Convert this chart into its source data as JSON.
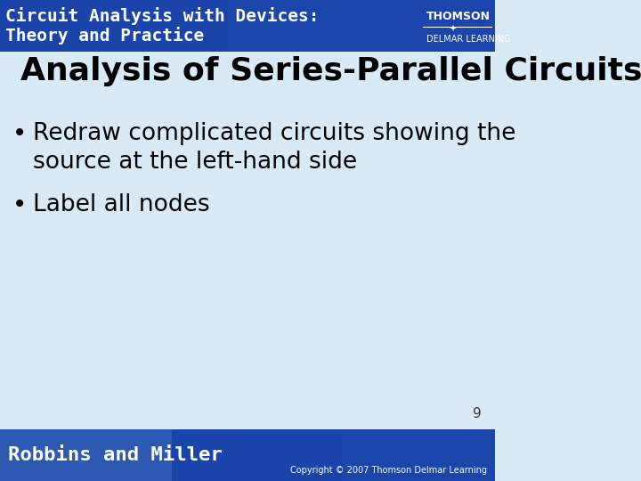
{
  "title": "Analysis of Series-Parallel Circuits",
  "bullet1_line1": "Redraw complicated circuits showing the",
  "bullet1_line2": "source at the left-hand side",
  "bullet2": "Label all nodes",
  "header_line1": "Circuit Analysis with Devices:",
  "header_line2": "Theory and Practice",
  "footer_left": "Robbins and Miller",
  "footer_right": "Copyright © 2007 Thomson Delmar Learning",
  "thomson_text": "THOMSON",
  "delmar_text": "DELMAR LEARNING",
  "page_number": "9",
  "header_bg_color": "#2255CC",
  "header_bg_color2": "#3377EE",
  "footer_bg_color": "#2255BB",
  "content_bg_color": "#D8EAF5",
  "content_bg_color2": "#E8F4FF",
  "title_color": "#000000",
  "bullet_color": "#000000",
  "header_text_color": "#FFFFFF",
  "footer_text_color": "#FFFFFF"
}
